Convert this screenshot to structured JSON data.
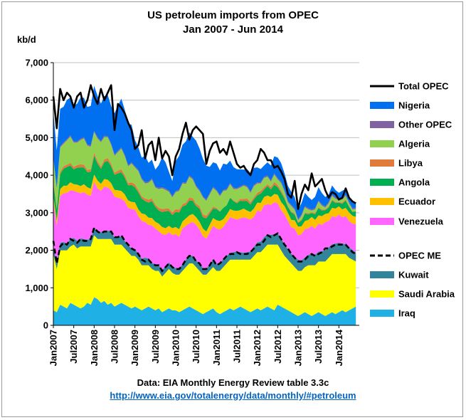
{
  "chart_data": {
    "type": "area",
    "title": [
      "US petroleum imports from OPEC",
      "Jan 2007 - Jun 2014"
    ],
    "ylabel": "kb/d",
    "ylim": [
      0,
      7000
    ],
    "yticks": [
      "0",
      "1,000",
      "2,000",
      "3,000",
      "4,000",
      "5,000",
      "6,000",
      "7,000"
    ],
    "ytick_values": [
      0,
      1000,
      2000,
      3000,
      4000,
      5000,
      6000,
      7000
    ],
    "xticks": [
      "Jan2007",
      "Jul2007",
      "Jan2008",
      "Jul2008",
      "Jan2009",
      "Jul2009",
      "Jan2010",
      "Jul2010",
      "Jan2011",
      "Jul2011",
      "Jan2012",
      "Jul2012",
      "Jan2013",
      "Jul2013",
      "Jan2014"
    ],
    "xtick_month_index": [
      0,
      6,
      12,
      18,
      24,
      30,
      36,
      42,
      48,
      54,
      60,
      66,
      72,
      78,
      84
    ],
    "xrange_months": [
      0,
      90
    ],
    "grid": "horizontal",
    "legend_position": "right",
    "series": [
      {
        "name": "Iraq",
        "color": "#1fb1e6",
        "values": [
          400,
          350,
          550,
          500,
          450,
          600,
          550,
          500,
          450,
          500,
          600,
          550,
          750,
          700,
          600,
          650,
          550,
          600,
          500,
          550,
          600,
          550,
          500,
          450,
          500,
          450,
          400,
          450,
          500,
          450,
          400,
          450,
          350,
          400,
          450,
          400,
          400,
          350,
          400,
          450,
          500,
          450,
          400,
          350,
          300,
          350,
          400,
          450,
          350,
          300,
          350,
          400,
          450,
          400,
          450,
          500,
          450,
          400,
          350,
          400,
          450,
          400,
          450,
          500,
          450,
          400,
          550,
          500,
          450,
          400,
          350,
          300,
          250,
          300,
          350,
          300,
          250,
          300,
          350,
          300,
          250,
          300,
          350,
          300,
          350,
          400,
          350,
          400,
          450,
          500
        ]
      },
      {
        "name": "Saudi Arabia",
        "color": "#ffff00",
        "values": [
          1500,
          1150,
          1450,
          1500,
          1550,
          1500,
          1600,
          1550,
          1650,
          1600,
          1500,
          1550,
          1650,
          1600,
          1700,
          1650,
          1750,
          1700,
          1650,
          1600,
          1550,
          1500,
          1450,
          1400,
          1350,
          1300,
          1200,
          1150,
          1100,
          1050,
          1050,
          1000,
          950,
          1000,
          1050,
          1000,
          950,
          1000,
          1050,
          1100,
          1150,
          1200,
          1150,
          1100,
          1050,
          1000,
          1050,
          1100,
          1100,
          1150,
          1200,
          1250,
          1300,
          1350,
          1300,
          1250,
          1300,
          1350,
          1400,
          1450,
          1500,
          1550,
          1600,
          1650,
          1700,
          1750,
          1600,
          1500,
          1400,
          1350,
          1300,
          1250,
          1200,
          1150,
          1200,
          1300,
          1350,
          1300,
          1350,
          1400,
          1450,
          1500,
          1550,
          1600,
          1550,
          1500,
          1550,
          1400,
          1300,
          1200
        ]
      },
      {
        "name": "Kuwait",
        "color": "#31849b",
        "values": [
          200,
          150,
          200,
          220,
          180,
          200,
          180,
          200,
          220,
          200,
          180,
          200,
          220,
          200,
          180,
          200,
          220,
          200,
          180,
          200,
          220,
          200,
          180,
          200,
          180,
          160,
          180,
          200,
          180,
          160,
          180,
          160,
          180,
          160,
          180,
          160,
          180,
          160,
          180,
          200,
          220,
          200,
          180,
          200,
          180,
          160,
          180,
          200,
          180,
          200,
          220,
          200,
          180,
          200,
          220,
          200,
          180,
          200,
          220,
          240,
          260,
          280,
          300,
          280,
          260,
          280,
          300,
          320,
          300,
          280,
          260,
          280,
          300,
          280,
          260,
          280,
          300,
          280,
          260,
          280,
          300,
          280,
          260,
          280,
          300,
          280,
          260,
          280,
          260,
          240
        ]
      },
      {
        "name": "Venezuela",
        "color": "#ff66ff",
        "values": [
          1200,
          1000,
          1250,
          1300,
          1350,
          1300,
          1250,
          1300,
          1200,
          1250,
          1200,
          1150,
          1200,
          1150,
          1100,
          1200,
          1150,
          1100,
          1100,
          1050,
          1000,
          1050,
          1000,
          1050,
          1050,
          1000,
          1000,
          950,
          900,
          1000,
          950,
          900,
          950,
          850,
          800,
          850,
          900,
          850,
          950,
          900,
          850,
          900,
          950,
          900,
          850,
          800,
          850,
          900,
          950,
          900,
          850,
          900,
          950,
          900,
          850,
          900,
          950,
          900,
          850,
          800,
          850,
          800,
          850,
          800,
          800,
          850,
          800,
          750,
          800,
          750,
          700,
          750,
          650,
          700,
          750,
          700,
          750,
          700,
          750,
          700,
          750,
          700,
          750,
          700,
          750,
          700,
          750,
          700,
          700,
          750
        ]
      },
      {
        "name": "Ecuador",
        "color": "#ffc000",
        "values": [
          150,
          140,
          180,
          200,
          190,
          210,
          180,
          200,
          190,
          210,
          200,
          190,
          200,
          210,
          190,
          200,
          210,
          190,
          180,
          200,
          210,
          190,
          200,
          190,
          200,
          180,
          200,
          210,
          190,
          200,
          180,
          200,
          190,
          180,
          170,
          180,
          190,
          200,
          190,
          200,
          210,
          220,
          200,
          210,
          200,
          190,
          200,
          210,
          220,
          230,
          210,
          200,
          220,
          210,
          230,
          220,
          230,
          210,
          200,
          220,
          210,
          230,
          220,
          230,
          210,
          220,
          230,
          220,
          230,
          220,
          200,
          220,
          230,
          210,
          220,
          230,
          240,
          230,
          220,
          230,
          220,
          210,
          220,
          230,
          220,
          210,
          220,
          230,
          210,
          200
        ]
      },
      {
        "name": "Angola",
        "color": "#00b050",
        "values": [
          350,
          300,
          400,
          450,
          500,
          450,
          400,
          450,
          500,
          450,
          400,
          450,
          500,
          450,
          400,
          450,
          500,
          450,
          400,
          450,
          500,
          450,
          400,
          450,
          400,
          450,
          400,
          350,
          400,
          450,
          400,
          350,
          400,
          450,
          400,
          350,
          400,
          450,
          400,
          350,
          400,
          350,
          300,
          350,
          300,
          350,
          300,
          250,
          300,
          250,
          300,
          250,
          300,
          250,
          200,
          250,
          200,
          250,
          200,
          250,
          200,
          250,
          200,
          250,
          200,
          250,
          200,
          250,
          200,
          150,
          200,
          150,
          100,
          150,
          200,
          150,
          100,
          150,
          200,
          150,
          100,
          150,
          200,
          150,
          100,
          150,
          200,
          150,
          100,
          150
        ]
      },
      {
        "name": "Libya",
        "color": "#e07b39",
        "values": [
          50,
          50,
          60,
          70,
          60,
          70,
          60,
          70,
          80,
          70,
          60,
          70,
          80,
          70,
          60,
          70,
          80,
          70,
          60,
          70,
          80,
          70,
          60,
          70,
          80,
          70,
          60,
          70,
          80,
          70,
          60,
          70,
          80,
          70,
          60,
          70,
          80,
          70,
          60,
          70,
          80,
          70,
          60,
          70,
          80,
          70,
          60,
          50,
          30,
          10,
          0,
          0,
          10,
          20,
          30,
          50,
          60,
          70,
          60,
          50,
          60,
          70,
          60,
          50,
          60,
          70,
          60,
          50,
          40,
          30,
          20,
          30,
          20,
          30,
          20,
          30,
          20,
          30,
          20,
          30,
          20,
          30,
          20,
          30,
          20,
          30,
          20,
          10,
          10,
          10
        ]
      },
      {
        "name": "Algeria",
        "color": "#92d050",
        "values": [
          600,
          500,
          650,
          600,
          650,
          700,
          650,
          600,
          650,
          700,
          650,
          600,
          550,
          600,
          650,
          600,
          550,
          500,
          450,
          500,
          550,
          500,
          450,
          500,
          450,
          500,
          450,
          400,
          450,
          500,
          450,
          500,
          550,
          500,
          450,
          400,
          450,
          500,
          550,
          500,
          550,
          500,
          450,
          400,
          450,
          400,
          450,
          500,
          450,
          400,
          450,
          400,
          350,
          300,
          350,
          300,
          350,
          300,
          250,
          300,
          250,
          200,
          250,
          200,
          150,
          200,
          150,
          200,
          150,
          100,
          150,
          100,
          50,
          100,
          150,
          100,
          50,
          100,
          150,
          100,
          50,
          80,
          100,
          80,
          60,
          80,
          100,
          80,
          60,
          50
        ]
      },
      {
        "name": "Other OPEC",
        "color": "#8064a2",
        "values": [
          30,
          25,
          30,
          35,
          30,
          35,
          30,
          35,
          30,
          35,
          30,
          35,
          30,
          35,
          30,
          35,
          30,
          35,
          30,
          35,
          30,
          35,
          30,
          35,
          30,
          35,
          30,
          35,
          30,
          35,
          30,
          35,
          30,
          35,
          30,
          35,
          30,
          35,
          30,
          35,
          30,
          35,
          30,
          35,
          30,
          35,
          30,
          35,
          30,
          35,
          30,
          35,
          30,
          35,
          30,
          35,
          30,
          35,
          30,
          35,
          30,
          35,
          30,
          35,
          30,
          35,
          30,
          35,
          30,
          35,
          30,
          35,
          30,
          35,
          30,
          35,
          30,
          35,
          30,
          35,
          30,
          35,
          30,
          35,
          30,
          35,
          30,
          35,
          30,
          35
        ]
      },
      {
        "name": "Nigeria",
        "color": "#0070f0",
        "values": [
          1200,
          1000,
          1000,
          950,
          1050,
          1000,
          950,
          1000,
          1100,
          1050,
          1000,
          1050,
          1200,
          1100,
          1000,
          1050,
          1100,
          1000,
          1100,
          1200,
          1300,
          1200,
          1100,
          1000,
          700,
          600,
          550,
          700,
          500,
          500,
          450,
          600,
          800,
          700,
          500,
          400,
          800,
          900,
          1000,
          1100,
          1150,
          1100,
          1200,
          1100,
          1000,
          900,
          700,
          650,
          700,
          650,
          700,
          650,
          600,
          550,
          500,
          450,
          400,
          450,
          500,
          450,
          400,
          350,
          300,
          350,
          400,
          450,
          550,
          500,
          450,
          400,
          350,
          300,
          250,
          300,
          350,
          300,
          250,
          300,
          350,
          300,
          250,
          200,
          250,
          200,
          150,
          200,
          150,
          100,
          150,
          100
        ]
      }
    ],
    "total_opec": {
      "name": "Total OPEC",
      "color": "#000000",
      "values": [
        6100,
        5250,
        6300,
        6000,
        6200,
        6100,
        5800,
        6100,
        6200,
        5800,
        6000,
        6400,
        6100,
        5900,
        6300,
        6000,
        6200,
        6400,
        5200,
        5900,
        5800,
        5650,
        5400,
        5200,
        4700,
        4800,
        5200,
        4450,
        4800,
        4900,
        4400,
        5000,
        4450,
        4650,
        4500,
        4000,
        4500,
        4700,
        5100,
        5400,
        4950,
        5200,
        5300,
        5200,
        5100,
        4300,
        4650,
        4850,
        4900,
        4600,
        4700,
        4550,
        4900,
        4600,
        4300,
        4200,
        4250,
        4100,
        4000,
        4300,
        4400,
        4700,
        4600,
        4400,
        4400,
        4200,
        4250,
        4100,
        3900,
        3500,
        3400,
        3850,
        3100,
        3500,
        3750,
        3600,
        4050,
        3700,
        3800,
        3900,
        3600,
        3400,
        3550,
        3500,
        3350,
        3400,
        3650,
        3400,
        3300,
        3250
      ]
    },
    "opec_me": {
      "name": "OPEC ME",
      "color": "#000000",
      "values": [
        2250,
        1650,
        2100,
        2200,
        2150,
        2300,
        2250,
        2200,
        2300,
        2250,
        2250,
        2300,
        2600,
        2500,
        2450,
        2500,
        2500,
        2500,
        2350,
        2350,
        2400,
        2250,
        2150,
        2050,
        2000,
        1900,
        1750,
        1700,
        1750,
        1650,
        1600,
        1600,
        1450,
        1550,
        1650,
        1550,
        1500,
        1500,
        1600,
        1750,
        1850,
        1850,
        1700,
        1650,
        1500,
        1500,
        1600,
        1750,
        1600,
        1650,
        1750,
        1850,
        1900,
        1900,
        1950,
        1900,
        1900,
        1900,
        1950,
        2050,
        2150,
        2150,
        2250,
        2400,
        2350,
        2400,
        2450,
        2300,
        2150,
        2050,
        1900,
        1800,
        1700,
        1700,
        1750,
        1850,
        1900,
        1850,
        1900,
        1950,
        2050,
        2050,
        2100,
        2150,
        2150,
        2150,
        2150,
        2050,
        1950,
        1900
      ]
    },
    "legend_order": [
      "Total OPEC",
      "Nigeria",
      "Other OPEC",
      "Algeria",
      "Libya",
      "Angola",
      "Ecuador",
      "Venezuela",
      "OPEC ME",
      "Kuwait",
      "Saudi Arabia",
      "Iraq"
    ]
  },
  "footer": {
    "source": "Data: EIA Monthly Energy Review table 3.3c",
    "url": "http://www.eia.gov/totalenergy/data/monthly/#petroleum"
  }
}
